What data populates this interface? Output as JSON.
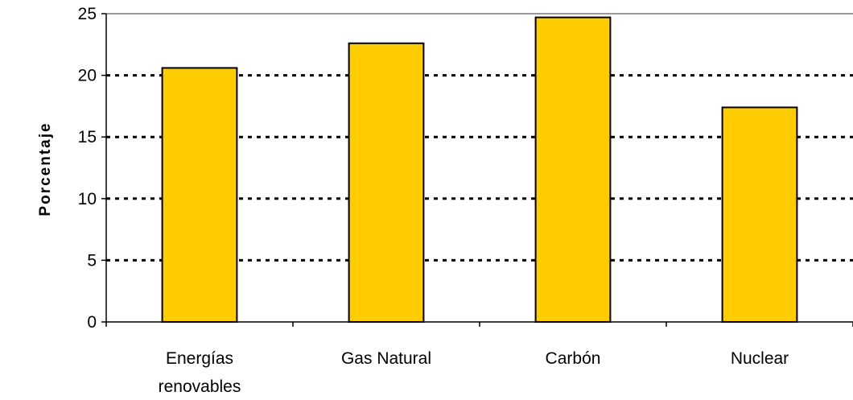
{
  "chart_data": {
    "type": "bar",
    "categories": [
      "Energías renovables",
      "Gas Natural",
      "Carbón",
      "Nuclear"
    ],
    "category_lines": [
      [
        "Energías",
        "renovables"
      ],
      [
        "Gas Natural"
      ],
      [
        "Carbón"
      ],
      [
        "Nuclear"
      ]
    ],
    "values": [
      20.6,
      22.6,
      24.7,
      17.4
    ],
    "title": "",
    "xlabel": "",
    "ylabel": "Porcentaje",
    "ylim": [
      0,
      25
    ],
    "yticks": [
      0,
      5,
      10,
      15,
      20,
      25
    ],
    "grid": true,
    "grid_style": "dotted",
    "legend": "none",
    "colors": {
      "bar": "#FFCC00",
      "bar_stroke": "#000000",
      "grid": "#000000",
      "axis": "#000000"
    }
  }
}
